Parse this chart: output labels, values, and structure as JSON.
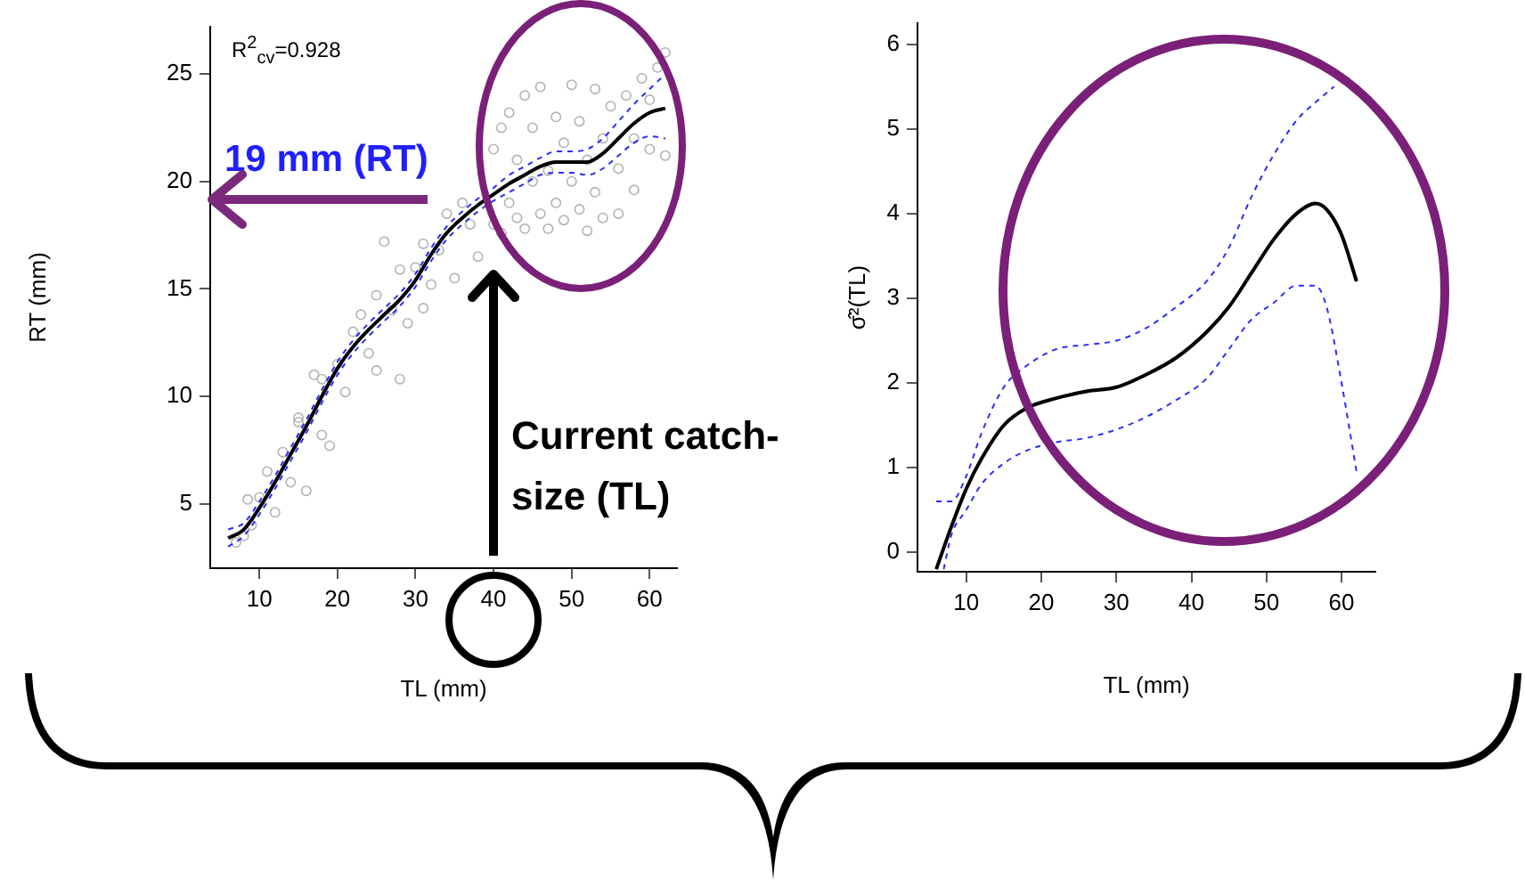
{
  "chart_data": [
    {
      "type": "scatter",
      "xlabel": "TL (mm)",
      "ylabel": "RT (mm)",
      "xlim": [
        3.7,
        63.5
      ],
      "ylim": [
        2,
        27.2
      ],
      "xticks": [
        10,
        20,
        30,
        40,
        50,
        60
      ],
      "yticks": [
        5,
        10,
        15,
        20,
        25
      ],
      "annotations": [
        "R$^{2}$$_{cv}$=0.928",
        "19 mm (RT)",
        "Current catch-size (TL)"
      ],
      "series": [
        {
          "type": "scatter",
          "marker": "circle",
          "color": "#b3b3b3",
          "x": [
            7,
            8,
            8.5,
            9,
            10,
            11,
            12,
            13,
            14,
            15,
            15,
            16,
            17,
            18,
            18,
            19,
            20,
            21,
            22,
            23,
            24,
            25,
            25,
            26,
            27,
            28,
            28,
            29,
            30,
            31,
            31,
            32,
            33,
            34,
            35,
            36,
            37,
            38,
            40,
            40,
            41,
            41,
            42,
            42,
            43,
            43,
            44,
            44,
            45,
            45,
            46,
            46,
            47,
            47,
            48,
            48,
            49,
            49,
            50,
            50,
            51,
            51,
            52,
            52,
            53,
            53,
            54,
            54,
            55,
            56,
            56,
            57,
            58,
            58,
            59,
            60,
            60,
            61,
            62,
            62
          ],
          "values": [
            3.2,
            3.5,
            5.2,
            4,
            5.3,
            6.5,
            4.6,
            7.4,
            6,
            9,
            8.8,
            5.6,
            11,
            10.8,
            8.2,
            7.7,
            11.5,
            10.2,
            13,
            13.8,
            12,
            14.7,
            11.2,
            17.2,
            14,
            10.8,
            15.9,
            13.4,
            16,
            17.1,
            14.1,
            15.2,
            16.8,
            18.5,
            15.5,
            19,
            18,
            16.5,
            21.5,
            18,
            22.5,
            17.6,
            23.2,
            19,
            18.3,
            21,
            24,
            17.8,
            20,
            22.5,
            18.5,
            24.4,
            20.5,
            17.8,
            23,
            19,
            21.8,
            18.2,
            24.5,
            20,
            22.8,
            18.7,
            17.7,
            21,
            24.3,
            19.5,
            22,
            18.3,
            23.5,
            20.6,
            18.5,
            24,
            22,
            19.6,
            24.8,
            21.5,
            23.8,
            25.3,
            21.2,
            26
          ]
        },
        {
          "type": "line",
          "color": "#000000",
          "x": [
            6,
            8,
            10,
            12,
            14,
            16,
            18,
            20,
            22,
            24,
            26,
            28,
            30,
            32,
            34,
            36,
            38,
            40,
            42,
            44,
            46,
            48,
            50,
            52,
            54,
            56,
            58,
            60,
            62
          ],
          "values": [
            3.4,
            3.8,
            4.8,
            6,
            7.3,
            8.6,
            10,
            11.3,
            12.3,
            13.1,
            13.8,
            14.5,
            15.4,
            16.6,
            17.6,
            18.3,
            18.9,
            19.4,
            19.9,
            20.3,
            20.7,
            20.9,
            20.9,
            20.9,
            21.3,
            22,
            22.7,
            23.2,
            23.4
          ]
        },
        {
          "type": "line",
          "color": "#2b2bff",
          "line_style": "dashed",
          "x": [
            6,
            8,
            10,
            12,
            14,
            16,
            18,
            20,
            22,
            24,
            26,
            28,
            30,
            32,
            34,
            36,
            38,
            40,
            42,
            44,
            46,
            48,
            50,
            52,
            54,
            56,
            58,
            60,
            62
          ],
          "values": [
            3,
            3.5,
            4.5,
            5.7,
            7,
            8.3,
            9.7,
            11,
            12,
            12.8,
            13.5,
            14.2,
            15.1,
            16.3,
            17.3,
            18,
            18.6,
            19.1,
            19.5,
            19.9,
            20.3,
            20.4,
            20.4,
            20.3,
            20.6,
            21.2,
            21.8,
            22.1,
            22
          ]
        },
        {
          "type": "line",
          "color": "#2b2bff",
          "line_style": "dashed",
          "x": [
            6,
            8,
            10,
            12,
            14,
            16,
            18,
            20,
            22,
            24,
            26,
            28,
            30,
            32,
            34,
            36,
            38,
            40,
            42,
            44,
            46,
            48,
            50,
            52,
            54,
            56,
            58,
            60,
            62
          ],
          "values": [
            3.8,
            4.1,
            5.1,
            6.3,
            7.6,
            8.9,
            10.3,
            11.6,
            12.6,
            13.4,
            14.1,
            14.8,
            15.7,
            16.9,
            17.9,
            18.6,
            19.2,
            19.7,
            20.3,
            20.7,
            21.1,
            21.4,
            21.4,
            21.5,
            22,
            22.8,
            23.6,
            24.3,
            25
          ]
        }
      ]
    },
    {
      "type": "line",
      "xlabel": "TL (mm)",
      "ylabel": "σ̂²(TL)",
      "xlim": [
        3.5,
        64.5
      ],
      "ylim": [
        -0.23,
        6.25
      ],
      "xticks": [
        10,
        20,
        30,
        40,
        50,
        60
      ],
      "yticks": [
        0,
        1,
        2,
        3,
        4,
        5,
        6
      ],
      "series": [
        {
          "color": "#000000",
          "x": [
            6,
            8,
            10,
            12,
            15,
            18,
            22,
            26,
            30,
            34,
            38,
            42,
            45,
            48,
            51,
            54,
            56.5,
            58,
            60,
            62
          ],
          "values": [
            -0.2,
            0.3,
            0.75,
            1.1,
            1.5,
            1.7,
            1.82,
            1.9,
            1.95,
            2.1,
            2.3,
            2.6,
            2.9,
            3.3,
            3.7,
            4,
            4.12,
            4.05,
            3.75,
            3.2
          ]
        },
        {
          "color": "#2b2bff",
          "line_style": "dashed",
          "x": [
            7,
            8,
            10,
            12,
            15,
            18,
            22,
            26,
            30,
            34,
            38,
            42,
            45,
            48,
            51,
            54,
            56.5,
            58,
            60,
            62
          ],
          "values": [
            -0.2,
            0.2,
            0.5,
            0.8,
            1.05,
            1.2,
            1.3,
            1.35,
            1.45,
            1.6,
            1.8,
            2.05,
            2.4,
            2.75,
            2.95,
            3.15,
            3.15,
            2.9,
            2,
            0.95
          ]
        },
        {
          "color": "#2b2bff",
          "line_style": "dashed",
          "x": [
            6,
            8,
            10,
            12,
            15,
            18,
            22,
            26,
            30,
            34,
            38,
            42,
            45,
            48,
            51,
            54,
            57,
            59
          ],
          "values": [
            0.6,
            0.6,
            0.9,
            1.4,
            1.95,
            2.2,
            2.4,
            2.45,
            2.5,
            2.65,
            2.9,
            3.2,
            3.6,
            4.2,
            4.7,
            5.1,
            5.35,
            5.5
          ]
        }
      ]
    }
  ]
}
